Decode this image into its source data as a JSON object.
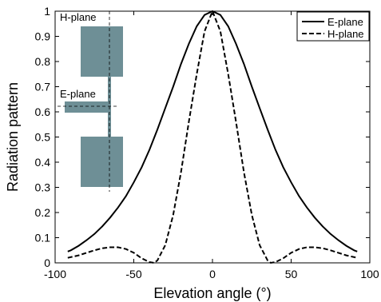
{
  "chart_data": {
    "type": "line",
    "title": "",
    "xlabel": "Elevation angle (°)",
    "ylabel": "Radiation pattern",
    "xlim": [
      -100,
      100
    ],
    "ylim": [
      0,
      1
    ],
    "xticks": [
      -100,
      -50,
      0,
      50,
      100
    ],
    "yticks": [
      0,
      0.1,
      0.2,
      0.3,
      0.4,
      0.5,
      0.6,
      0.7,
      0.8,
      0.9,
      1
    ],
    "grid": false,
    "legend_position": "top-right",
    "series": [
      {
        "name": "E-plane",
        "style": "solid",
        "x": [
          -92,
          -90,
          -85,
          -80,
          -75,
          -70,
          -65,
          -60,
          -55,
          -50,
          -45,
          -40,
          -35,
          -30,
          -25,
          -20,
          -15,
          -10,
          -5,
          0,
          5,
          10,
          15,
          20,
          25,
          30,
          35,
          40,
          45,
          50,
          55,
          60,
          65,
          70,
          75,
          80,
          85,
          90,
          92
        ],
        "y": [
          0.045,
          0.05,
          0.068,
          0.09,
          0.115,
          0.145,
          0.18,
          0.22,
          0.265,
          0.32,
          0.38,
          0.45,
          0.53,
          0.615,
          0.7,
          0.79,
          0.87,
          0.94,
          0.985,
          1.0,
          0.985,
          0.94,
          0.87,
          0.79,
          0.7,
          0.615,
          0.53,
          0.45,
          0.38,
          0.32,
          0.265,
          0.22,
          0.18,
          0.145,
          0.115,
          0.09,
          0.068,
          0.05,
          0.045
        ]
      },
      {
        "name": "H-plane",
        "style": "dashed",
        "x": [
          -92,
          -85,
          -80,
          -75,
          -70,
          -65,
          -60,
          -55,
          -50,
          -45,
          -40,
          -37,
          -35,
          -30,
          -25,
          -20,
          -15,
          -10,
          -5,
          0,
          5,
          10,
          15,
          20,
          25,
          30,
          35,
          37,
          40,
          45,
          50,
          55,
          60,
          65,
          70,
          75,
          80,
          85,
          92
        ],
        "y": [
          0.02,
          0.03,
          0.04,
          0.05,
          0.058,
          0.062,
          0.062,
          0.055,
          0.04,
          0.018,
          0.003,
          0.0,
          0.01,
          0.07,
          0.19,
          0.36,
          0.56,
          0.75,
          0.92,
          1.0,
          0.92,
          0.75,
          0.56,
          0.36,
          0.19,
          0.07,
          0.01,
          0.0,
          0.003,
          0.018,
          0.04,
          0.055,
          0.062,
          0.062,
          0.058,
          0.05,
          0.04,
          0.03,
          0.02
        ]
      }
    ],
    "inset": {
      "labels": [
        "H-plane",
        "E-plane"
      ],
      "fill_color": "#6e8f96"
    }
  }
}
